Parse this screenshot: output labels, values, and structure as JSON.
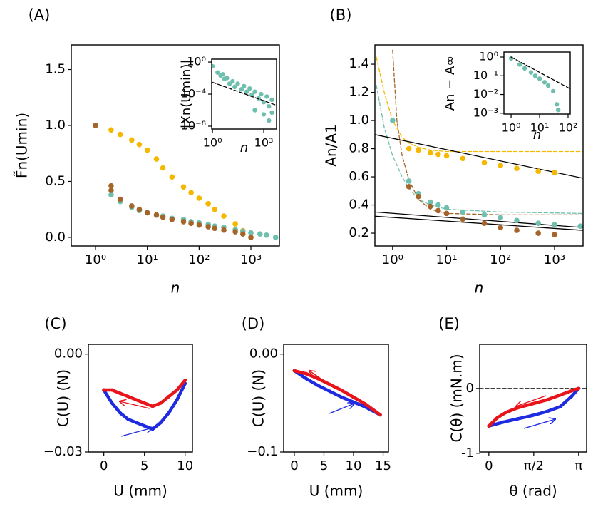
{
  "chart_data": [
    {
      "type": "scatter",
      "title": "(A)",
      "xlabel": "n",
      "ylabel": "F̃n(Umin)",
      "xscale": "log",
      "xlim": [
        0.34,
        3550
      ],
      "ylim": [
        -0.077,
        1.72
      ],
      "xticks": [
        {
          "value": 1,
          "label": "10⁰"
        },
        {
          "value": 10,
          "label": "10¹"
        },
        {
          "value": 100,
          "label": "10²"
        },
        {
          "value": 1000,
          "label": "10³"
        }
      ],
      "yticks": [
        {
          "value": 0,
          "label": "0.0"
        },
        0.5,
        {
          "value": 1,
          "label": "1.0"
        },
        1.5
      ],
      "series": [
        {
          "color": "#f5b800",
          "marker": "dot",
          "x": [
            2,
            3,
            5,
            7,
            10,
            15,
            20,
            30,
            50,
            70,
            100,
            150,
            200,
            300,
            500,
            700,
            1000
          ],
          "values": [
            0.96,
            0.92,
            0.87,
            0.83,
            0.78,
            0.7,
            0.62,
            0.54,
            0.45,
            0.4,
            0.35,
            0.3,
            0.25,
            0.19,
            0.12,
            0.06,
            0.0
          ]
        },
        {
          "color": "#6fbfae",
          "marker": "dot",
          "x": [
            2,
            3,
            5,
            7,
            10,
            15,
            20,
            30,
            50,
            70,
            100,
            150,
            200,
            300,
            500,
            700,
            1000,
            1500,
            2000,
            3000
          ],
          "values": [
            0.38,
            0.32,
            0.27,
            0.24,
            0.22,
            0.2,
            0.19,
            0.17,
            0.16,
            0.14,
            0.13,
            0.115,
            0.1,
            0.09,
            0.07,
            0.055,
            0.04,
            0.03,
            0.02,
            0.0
          ]
        },
        {
          "color": "#a5652a",
          "marker": "dot",
          "x": [
            1,
            2,
            2,
            3,
            5,
            7,
            10,
            15,
            20,
            30,
            50,
            70,
            100,
            150,
            200,
            300,
            500,
            700,
            1000
          ],
          "values": [
            1.0,
            0.46,
            0.42,
            0.34,
            0.28,
            0.25,
            0.22,
            0.2,
            0.18,
            0.16,
            0.14,
            0.125,
            0.11,
            0.095,
            0.08,
            0.065,
            0.05,
            0.03,
            0.0
          ]
        }
      ]
    },
    {
      "type": "scatter",
      "xlabel": "n",
      "ylabel": "|Xn(Umin)|",
      "xscale": "log",
      "yscale": "log",
      "xlim": [
        0.9,
        5600
      ],
      "ylim": [
        4.4e-09,
        2.3
      ],
      "xticks": [
        {
          "value": 1,
          "label": "10⁰"
        },
        {
          "value": 1000,
          "label": "10³"
        }
      ],
      "yticks": [
        {
          "value": 1,
          "label": "10⁰"
        },
        {
          "value": 0.0001,
          "label": "10⁻⁴"
        },
        {
          "value": 1e-08,
          "label": "10⁻⁸"
        }
      ],
      "series": [
        {
          "color": "#6fbfae",
          "marker": "dot",
          "x": [
            1,
            2,
            3,
            4,
            5,
            7,
            10,
            15,
            20,
            30,
            50,
            70,
            100,
            150,
            200,
            300,
            500,
            700,
            1000,
            1500,
            2000,
            3000,
            300,
            1000,
            2000,
            3000
          ],
          "values": [
            0.3,
            0.05,
            0.02,
            0.03,
            0.008,
            0.01,
            0.002,
            0.004,
            0.0008,
            0.002,
            0.0004,
            0.001,
            0.0002,
            0.0005,
            8e-05,
            0.0002,
            3e-05,
            0.0001,
            1e-05,
            5e-05,
            3e-06,
            2e-05,
            1e-06,
            3e-07,
            5e-08,
            5e-07
          ]
        },
        {
          "color": "#000000",
          "line": "dashed",
          "x": [
            1,
            5600
          ],
          "values": [
            0.003,
            4e-06
          ]
        }
      ]
    },
    {
      "type": "scatter",
      "title": "(B)",
      "xlabel": "n",
      "ylabel": "An/A1",
      "xscale": "log",
      "xlim": [
        0.47,
        3380
      ],
      "ylim": [
        0.109,
        1.537
      ],
      "xticks": [
        {
          "value": 1,
          "label": "10⁰"
        },
        {
          "value": 10,
          "label": "10¹"
        },
        {
          "value": 100,
          "label": "10²"
        },
        {
          "value": 1000,
          "label": "10³"
        }
      ],
      "yticks": [
        0.2,
        0.4,
        0.6,
        0.8,
        {
          "value": 1,
          "label": "1.0"
        },
        1.2,
        1.4
      ],
      "series": [
        {
          "color": "#f5b800",
          "line": "dashed",
          "x": [
            0.5,
            0.7,
            1,
            1.5,
            2,
            3,
            5,
            10,
            100,
            3380
          ],
          "values": [
            1.45,
            1.2,
            1.0,
            0.88,
            0.84,
            0.81,
            0.79,
            0.78,
            0.78,
            0.78
          ]
        },
        {
          "color": "#6fbfae",
          "line": "dashed",
          "x": [
            0.5,
            0.7,
            1,
            1.5,
            2,
            3,
            5,
            10,
            100,
            3380
          ],
          "values": [
            1.25,
            0.95,
            0.75,
            0.6,
            0.52,
            0.44,
            0.4,
            0.37,
            0.35,
            0.34
          ]
        },
        {
          "color": "#a5652a",
          "line": "dashed",
          "x": [
            1,
            1.2,
            1.5,
            2,
            3,
            5,
            10,
            100,
            3380
          ],
          "values": [
            1.5,
            1.0,
            0.75,
            0.58,
            0.44,
            0.37,
            0.34,
            0.33,
            0.33
          ]
        },
        {
          "color": "#000000",
          "line": "solid",
          "x": [
            0.47,
            3380
          ],
          "values": [
            0.9,
            0.59
          ]
        },
        {
          "color": "#000000",
          "line": "solid",
          "x": [
            0.47,
            3380
          ],
          "values": [
            0.35,
            0.24
          ]
        },
        {
          "color": "#000000",
          "line": "solid",
          "x": [
            0.47,
            3380
          ],
          "values": [
            0.32,
            0.22
          ]
        },
        {
          "color": "#f5b800",
          "marker": "dot",
          "x": [
            2,
            3,
            5,
            7,
            10,
            20,
            50,
            100,
            200,
            500,
            1000
          ],
          "values": [
            0.8,
            0.79,
            0.77,
            0.76,
            0.75,
            0.73,
            0.7,
            0.68,
            0.66,
            0.64,
            0.63
          ]
        },
        {
          "color": "#6fbfae",
          "marker": "dot",
          "x": [
            1,
            2,
            3,
            5,
            7,
            10,
            20,
            50,
            100,
            200,
            500,
            1000,
            3000
          ],
          "values": [
            1.0,
            0.57,
            0.48,
            0.42,
            0.4,
            0.38,
            0.35,
            0.33,
            0.31,
            0.29,
            0.27,
            0.26,
            0.25
          ]
        },
        {
          "color": "#a5652a",
          "marker": "dot",
          "x": [
            2,
            3,
            5,
            7,
            10,
            20,
            50,
            100,
            200,
            500,
            1000
          ],
          "values": [
            0.53,
            0.46,
            0.39,
            0.36,
            0.34,
            0.3,
            0.27,
            0.24,
            0.22,
            0.2,
            0.19
          ]
        }
      ]
    },
    {
      "type": "scatter",
      "xlabel": "n",
      "ylabel": "An − A∞",
      "xscale": "log",
      "yscale": "log",
      "xlim": [
        0.56,
        119
      ],
      "ylim": [
        0.0009,
        1.85
      ],
      "xticks": [
        {
          "value": 1,
          "label": "10⁰"
        },
        {
          "value": 10,
          "label": "10¹"
        },
        {
          "value": 100,
          "label": "10²"
        }
      ],
      "yticks": [
        {
          "value": 1,
          "label": "10⁰"
        },
        {
          "value": 0.1,
          "label": "10⁻¹"
        },
        {
          "value": 0.01,
          "label": "10⁻²"
        },
        {
          "value": 0.001,
          "label": "10⁻³"
        }
      ],
      "series": [
        {
          "color": "#6fbfae",
          "marker": "dot",
          "x": [
            1,
            2,
            3,
            5,
            7,
            10,
            15,
            20,
            30,
            40,
            45
          ],
          "values": [
            0.85,
            0.4,
            0.25,
            0.15,
            0.1,
            0.07,
            0.045,
            0.03,
            0.015,
            0.003,
            0.0015
          ]
        },
        {
          "color": "#000000",
          "line": "dashed",
          "x": [
            1,
            119
          ],
          "values": [
            1,
            0.02
          ]
        }
      ]
    },
    {
      "type": "scatter",
      "title": "(C)",
      "xlabel": "U (mm)",
      "ylabel": "C(U) (N)",
      "xlim": [
        -1.9,
        10.9
      ],
      "ylim": [
        -0.03,
        0.003
      ],
      "xticks": [
        0,
        5,
        10
      ],
      "yticks": [
        {
          "value": 0,
          "label": "0.00"
        },
        {
          "value": -0.03,
          "label": "−0.03"
        }
      ],
      "series": [
        {
          "color": "#1f2be0",
          "line": "solid",
          "marker": "small",
          "x": [
            0,
            1,
            2,
            3,
            4,
            5,
            6,
            7,
            8,
            9,
            10
          ],
          "values": [
            -0.011,
            -0.015,
            -0.018,
            -0.02,
            -0.021,
            -0.022,
            -0.023,
            -0.021,
            -0.018,
            -0.014,
            -0.009
          ]
        },
        {
          "color": "#e8141c",
          "line": "solid",
          "marker": "small",
          "x": [
            0,
            1,
            2,
            3,
            4,
            5,
            6,
            7,
            8,
            9,
            10
          ],
          "values": [
            -0.011,
            -0.011,
            -0.012,
            -0.013,
            -0.014,
            -0.015,
            -0.016,
            -0.015,
            -0.013,
            -0.011,
            -0.008
          ]
        }
      ]
    },
    {
      "type": "scatter",
      "title": "(D)",
      "xlabel": "U (mm)",
      "ylabel": "C(U) (N)",
      "xlim": [
        -1.8,
        15.9
      ],
      "ylim": [
        -0.1,
        0.01
      ],
      "xticks": [
        0,
        5,
        10,
        15
      ],
      "yticks": [
        {
          "value": 0,
          "label": "0.00"
        },
        {
          "value": -0.1,
          "label": "−0.1"
        }
      ],
      "series": [
        {
          "color": "#1f2be0",
          "line": "solid",
          "marker": "small",
          "x": [
            0,
            2,
            4,
            6,
            8,
            10,
            12,
            14.5
          ],
          "values": [
            -0.017,
            -0.025,
            -0.032,
            -0.038,
            -0.044,
            -0.049,
            -0.054,
            -0.062
          ]
        },
        {
          "color": "#e8141c",
          "line": "solid",
          "marker": "small",
          "x": [
            0,
            2,
            4,
            6,
            8,
            10,
            12,
            14.5
          ],
          "values": [
            -0.017,
            -0.02,
            -0.025,
            -0.031,
            -0.037,
            -0.044,
            -0.051,
            -0.062
          ]
        }
      ]
    },
    {
      "type": "scatter",
      "title": "(E)",
      "xlabel": "θ (rad)",
      "ylabel": "C(θ) (mN.m)",
      "xlim": [
        -0.32,
        3.42
      ],
      "ylim": [
        -0.98,
        0.68
      ],
      "xticks": [
        0,
        {
          "value": 1.5708,
          "label": "π/2"
        },
        {
          "value": 3.1416,
          "label": "π"
        }
      ],
      "yticks": [
        -1,
        0
      ],
      "series": [
        {
          "color": "#000000",
          "line": "dashed",
          "x": [
            -0.32,
            3.42
          ],
          "values": [
            0,
            0
          ]
        },
        {
          "color": "#1f2be0",
          "line": "solid",
          "marker": "small",
          "x": [
            0,
            0.5,
            1,
            1.5,
            2,
            2.5,
            2.9,
            3.14
          ],
          "values": [
            -0.58,
            -0.52,
            -0.47,
            -0.42,
            -0.36,
            -0.28,
            -0.12,
            0
          ]
        },
        {
          "color": "#e8141c",
          "line": "solid",
          "marker": "small",
          "x": [
            0,
            0.3,
            0.6,
            1,
            1.5,
            2,
            2.5,
            3,
            3.14
          ],
          "values": [
            -0.58,
            -0.45,
            -0.37,
            -0.3,
            -0.24,
            -0.18,
            -0.1,
            -0.02,
            0
          ]
        }
      ]
    }
  ]
}
